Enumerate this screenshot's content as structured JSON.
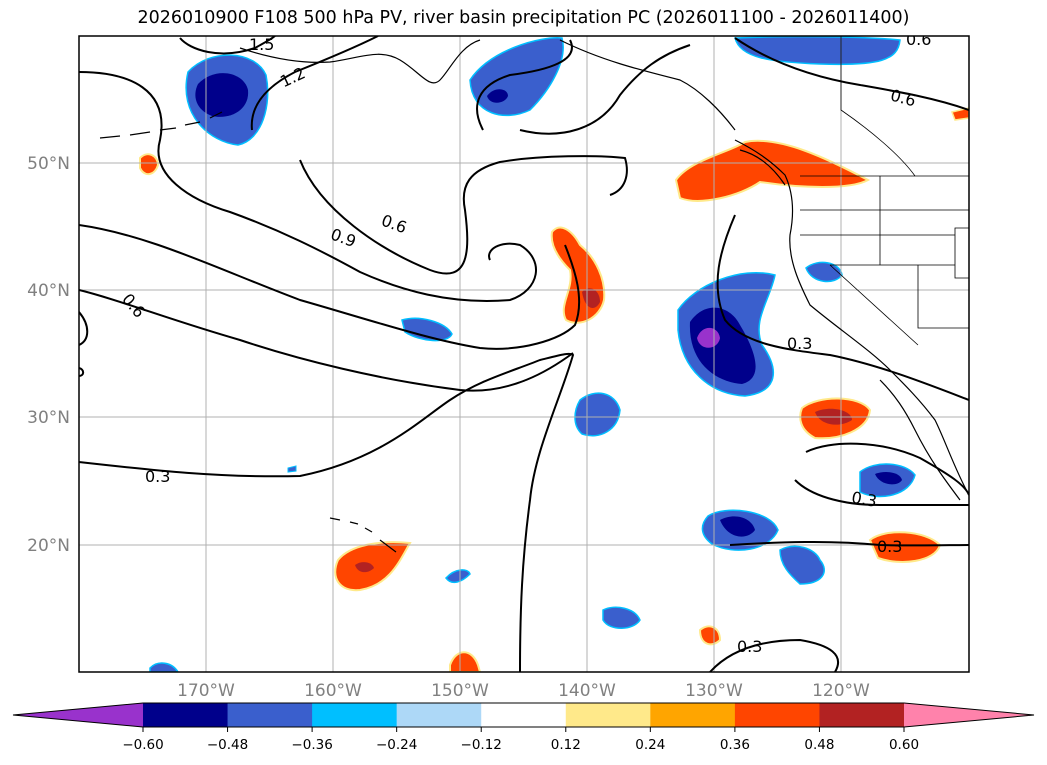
{
  "title": "2026010900 F108 500 hPa PV, river basin precipitation PC (2026011100 - 2026011400)",
  "map": {
    "lat_labels": [
      "50°N",
      "40°N",
      "30°N",
      "20°N"
    ],
    "lon_labels": [
      "170°W",
      "160°W",
      "150°W",
      "140°W",
      "130°W",
      "120°W"
    ],
    "contour_labels": [
      "1.5",
      "1.2",
      "0.6",
      "0.9",
      "0.6",
      "0.6",
      "0.6",
      "0.3",
      "0.3",
      "0.3",
      "0.3",
      "0.3"
    ],
    "contour_color": "#000000",
    "grid_color": "#b0b0b0"
  },
  "colorbar": {
    "ticks": [
      "−0.60",
      "−0.48",
      "−0.36",
      "−0.24",
      "−0.12",
      "0.12",
      "0.24",
      "0.36",
      "0.48",
      "0.60"
    ],
    "colors": [
      "#9932cc",
      "#00008b",
      "#3a5fcd",
      "#00bfff",
      "#add8f7",
      "#ffffff",
      "#ffe98a",
      "#ffa500",
      "#ff4500",
      "#b22222",
      "#ff82ab"
    ]
  }
}
